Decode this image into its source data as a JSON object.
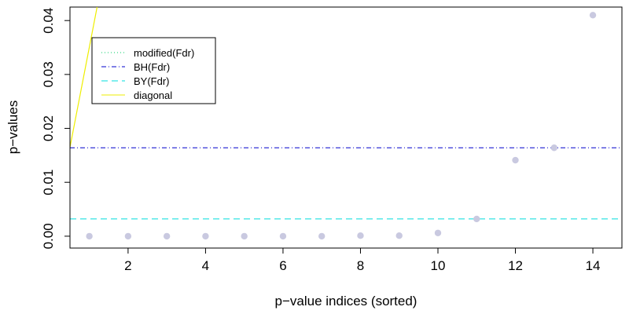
{
  "chart_data": {
    "type": "scatter",
    "xlabel": "p−value indices (sorted)",
    "ylabel": "p−values",
    "xlim": [
      0.5,
      14.75
    ],
    "ylim": [
      -0.0022,
      0.0425
    ],
    "x_ticks": [
      2,
      4,
      6,
      8,
      10,
      12,
      14
    ],
    "y_ticks": [
      0.0,
      0.01,
      0.02,
      0.03,
      0.04
    ],
    "y_tick_labels": [
      "0.00",
      "0.01",
      "0.02",
      "0.03",
      "0.04"
    ],
    "points": {
      "color": "#c9c9e0",
      "x": [
        1,
        2,
        3,
        4,
        5,
        6,
        7,
        8,
        9,
        10,
        11,
        12,
        13,
        14
      ],
      "y": [
        0.0,
        0.0,
        0.0,
        0.0,
        0.0,
        0.0,
        0.0,
        0.0001,
        0.0001,
        0.0006,
        0.0032,
        0.0141,
        0.0164,
        0.041
      ]
    },
    "lines": [
      {
        "name": "modified(Fdr)",
        "kind": "hline",
        "y": null,
        "color": "#00cc66",
        "dash": "1,3"
      },
      {
        "name": "BH(Fdr)",
        "kind": "hline",
        "y": 0.0164,
        "color": "#0000cc",
        "dash": "6,3,1,3"
      },
      {
        "name": "BY(Fdr)",
        "kind": "hline",
        "y": 0.0032,
        "color": "#00dddd",
        "dash": "8,5"
      },
      {
        "name": "diagonal",
        "kind": "diagonal",
        "points": [
          [
            0.5,
            0.0165
          ],
          [
            1.2,
            0.0425
          ]
        ],
        "color": "#eeee00",
        "dash": ""
      }
    ],
    "legend": {
      "position": "top-left",
      "entries": [
        "modified(Fdr)",
        "BH(Fdr)",
        "BY(Fdr)",
        "diagonal"
      ]
    }
  }
}
